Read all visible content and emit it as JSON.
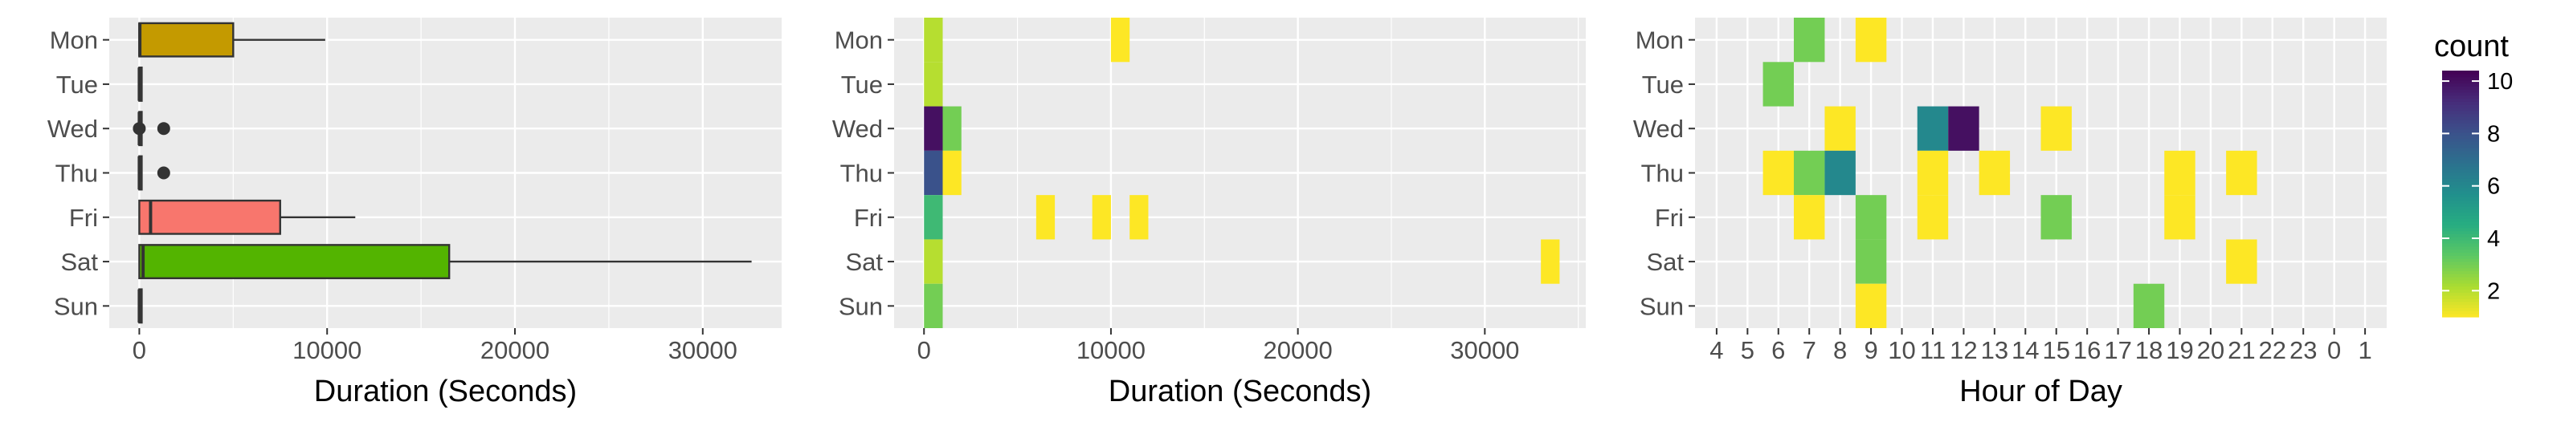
{
  "days": [
    "Mon",
    "Tue",
    "Wed",
    "Thu",
    "Fri",
    "Sat",
    "Sun"
  ],
  "colors": {
    "panel_bg": "#EBEBEB",
    "grid": "#FFFFFF",
    "box_outline": "#333333",
    "box_fills": {
      "Mon": "#C49A00",
      "Fri": "#F8766D",
      "Sat": "#53B400"
    }
  },
  "chart_data": [
    {
      "type": "boxplot",
      "xlabel": "Duration (Seconds)",
      "ylabel": "",
      "xlim": [
        -1600,
        34200
      ],
      "xticks": [
        0,
        10000,
        20000,
        30000
      ],
      "xtick_labels": [
        "0",
        "10000",
        "20000",
        "30000"
      ],
      "boxes": [
        {
          "day": "Mon",
          "q1": 0,
          "median": 30,
          "q3": 5000,
          "whisker_low": 0,
          "whisker_high": 9900,
          "outliers": []
        },
        {
          "day": "Tue",
          "q1": 0,
          "median": 0,
          "q3": 20,
          "whisker_low": 0,
          "whisker_high": 20,
          "outliers": []
        },
        {
          "day": "Wed",
          "q1": 0,
          "median": 0,
          "q3": 30,
          "whisker_low": 0,
          "whisker_high": 30,
          "outliers": [
            0,
            1300
          ]
        },
        {
          "day": "Thu",
          "q1": 0,
          "median": 0,
          "q3": 30,
          "whisker_low": 0,
          "whisker_high": 30,
          "outliers": [
            1300
          ]
        },
        {
          "day": "Fri",
          "q1": 0,
          "median": 600,
          "q3": 7500,
          "whisker_low": 0,
          "whisker_high": 11500,
          "outliers": []
        },
        {
          "day": "Sat",
          "q1": 0,
          "median": 200,
          "q3": 16500,
          "whisker_low": 0,
          "whisker_high": 32600,
          "outliers": []
        },
        {
          "day": "Sun",
          "q1": 0,
          "median": 0,
          "q3": 20,
          "whisker_low": 0,
          "whisker_high": 20,
          "outliers": []
        }
      ]
    },
    {
      "type": "heatmap",
      "xlabel": "Duration (Seconds)",
      "xlim": [
        -1600,
        35400
      ],
      "xticks": [
        0,
        10000,
        20000,
        30000
      ],
      "xtick_labels": [
        "0",
        "10000",
        "20000",
        "30000"
      ],
      "bin_width": 1000,
      "cells": [
        {
          "day": "Mon",
          "x": 0,
          "count": 2
        },
        {
          "day": "Mon",
          "x": 10000,
          "count": 1
        },
        {
          "day": "Tue",
          "x": 0,
          "count": 2
        },
        {
          "day": "Wed",
          "x": 0,
          "count": 10
        },
        {
          "day": "Wed",
          "x": 1000,
          "count": 3
        },
        {
          "day": "Thu",
          "x": 0,
          "count": 8
        },
        {
          "day": "Thu",
          "x": 1000,
          "count": 1
        },
        {
          "day": "Fri",
          "x": 0,
          "count": 4
        },
        {
          "day": "Fri",
          "x": 6000,
          "count": 1
        },
        {
          "day": "Fri",
          "x": 9000,
          "count": 1
        },
        {
          "day": "Fri",
          "x": 11000,
          "count": 1
        },
        {
          "day": "Sat",
          "x": 0,
          "count": 2
        },
        {
          "day": "Sat",
          "x": 33000,
          "count": 1
        },
        {
          "day": "Sun",
          "x": 0,
          "count": 3
        }
      ]
    },
    {
      "type": "heatmap",
      "xlabel": "Hour of Day",
      "categories": [
        "4",
        "5",
        "6",
        "7",
        "8",
        "9",
        "10",
        "11",
        "12",
        "13",
        "14",
        "15",
        "16",
        "17",
        "18",
        "19",
        "20",
        "21",
        "22",
        "23",
        "0",
        "1"
      ],
      "cells": [
        {
          "day": "Mon",
          "hour": "7",
          "count": 3
        },
        {
          "day": "Mon",
          "hour": "9",
          "count": 1
        },
        {
          "day": "Tue",
          "hour": "6",
          "count": 3
        },
        {
          "day": "Wed",
          "hour": "8",
          "count": 1
        },
        {
          "day": "Wed",
          "hour": "11",
          "count": 6
        },
        {
          "day": "Wed",
          "hour": "12",
          "count": 10
        },
        {
          "day": "Wed",
          "hour": "15",
          "count": 1
        },
        {
          "day": "Thu",
          "hour": "6",
          "count": 1
        },
        {
          "day": "Thu",
          "hour": "7",
          "count": 3
        },
        {
          "day": "Thu",
          "hour": "8",
          "count": 6
        },
        {
          "day": "Thu",
          "hour": "11",
          "count": 1
        },
        {
          "day": "Thu",
          "hour": "13",
          "count": 1
        },
        {
          "day": "Thu",
          "hour": "19",
          "count": 1
        },
        {
          "day": "Thu",
          "hour": "21",
          "count": 1
        },
        {
          "day": "Fri",
          "hour": "7",
          "count": 1
        },
        {
          "day": "Fri",
          "hour": "9",
          "count": 3
        },
        {
          "day": "Fri",
          "hour": "11",
          "count": 1
        },
        {
          "day": "Fri",
          "hour": "15",
          "count": 3
        },
        {
          "day": "Fri",
          "hour": "19",
          "count": 1
        },
        {
          "day": "Sat",
          "hour": "9",
          "count": 3
        },
        {
          "day": "Sat",
          "hour": "21",
          "count": 1
        },
        {
          "day": "Sun",
          "hour": "9",
          "count": 1
        },
        {
          "day": "Sun",
          "hour": "18",
          "count": 3
        }
      ]
    }
  ],
  "legend": {
    "title": "count",
    "min": 1,
    "max": 10.4,
    "ticks": [
      2,
      4,
      6,
      8,
      10
    ],
    "tick_labels": [
      "2",
      "4",
      "6",
      "8",
      "10"
    ]
  }
}
